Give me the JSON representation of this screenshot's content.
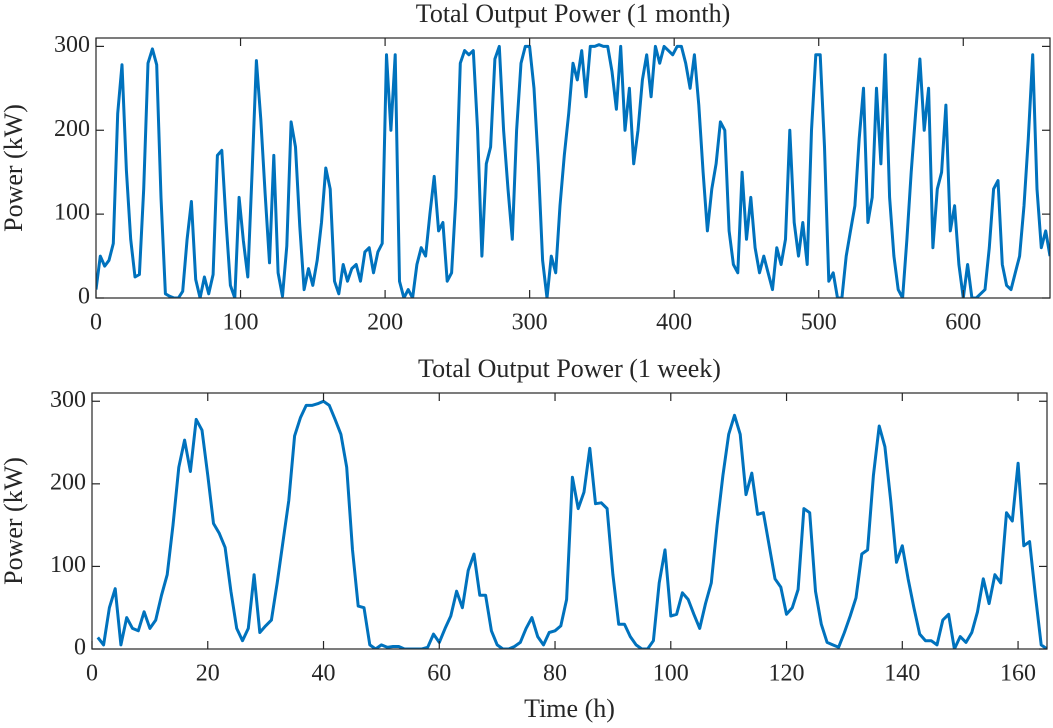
{
  "chart_data": [
    {
      "type": "line",
      "title": "Total Output Power (1 month)",
      "ylabel": "Power (kW)",
      "xlim": [
        0,
        660
      ],
      "ylim": [
        0,
        310
      ],
      "xticks": [
        0,
        100,
        200,
        300,
        400,
        500,
        600
      ],
      "yticks": [
        0,
        100,
        200,
        300
      ],
      "series": [
        {
          "color": "#0072bd",
          "x": [
            0,
            3,
            6,
            9,
            12,
            15,
            18,
            21,
            24,
            27,
            30,
            33,
            36,
            39,
            42,
            45,
            48,
            51,
            54,
            57,
            60,
            63,
            66,
            69,
            72,
            75,
            78,
            81,
            84,
            87,
            90,
            93,
            96,
            99,
            102,
            105,
            108,
            111,
            114,
            117,
            120,
            123,
            126,
            129,
            132,
            135,
            138,
            141,
            144,
            147,
            150,
            153,
            156,
            159,
            162,
            165,
            168,
            171,
            174,
            177,
            180,
            183,
            186,
            189,
            192,
            195,
            198,
            201,
            204,
            207,
            210,
            213,
            216,
            219,
            222,
            225,
            228,
            231,
            234,
            237,
            240,
            243,
            246,
            249,
            252,
            255,
            258,
            261,
            264,
            267,
            270,
            273,
            276,
            279,
            282,
            285,
            288,
            291,
            294,
            297,
            300,
            303,
            306,
            309,
            312,
            315,
            318,
            321,
            324,
            327,
            330,
            333,
            336,
            339,
            342,
            345,
            348,
            351,
            354,
            357,
            360,
            363,
            366,
            369,
            372,
            375,
            378,
            381,
            384,
            387,
            390,
            393,
            396,
            399,
            402,
            405,
            408,
            411,
            414,
            417,
            420,
            423,
            426,
            429,
            432,
            435,
            438,
            441,
            444,
            447,
            450,
            453,
            456,
            459,
            462,
            465,
            468,
            471,
            474,
            477,
            480,
            483,
            486,
            489,
            492,
            495,
            498,
            501,
            504,
            507,
            510,
            513,
            516,
            519,
            522,
            525,
            528,
            531,
            534,
            537,
            540,
            543,
            546,
            549,
            552,
            555,
            558,
            561,
            564,
            567,
            570,
            573,
            576,
            579,
            582,
            585,
            588,
            591,
            594,
            597,
            600,
            603,
            606,
            609,
            612,
            615,
            618,
            621,
            624,
            627,
            630,
            633,
            636,
            639,
            642,
            645,
            648,
            651,
            654,
            657,
            660
          ],
          "values": [
            10,
            50,
            38,
            45,
            65,
            220,
            278,
            152,
            70,
            25,
            28,
            130,
            280,
            297,
            278,
            120,
            5,
            2,
            0,
            0,
            8,
            70,
            115,
            22,
            0,
            25,
            5,
            28,
            170,
            176,
            90,
            15,
            0,
            120,
            68,
            25,
            150,
            283,
            213,
            125,
            42,
            170,
            30,
            2,
            62,
            210,
            180,
            85,
            10,
            35,
            15,
            45,
            90,
            155,
            130,
            20,
            5,
            40,
            20,
            35,
            40,
            20,
            55,
            60,
            30,
            55,
            65,
            290,
            200,
            290,
            20,
            0,
            10,
            0,
            40,
            60,
            50,
            100,
            145,
            80,
            90,
            20,
            30,
            120,
            280,
            295,
            290,
            295,
            200,
            50,
            160,
            180,
            285,
            300,
            200,
            130,
            70,
            200,
            280,
            300,
            300,
            250,
            160,
            45,
            0,
            50,
            30,
            110,
            170,
            220,
            280,
            260,
            295,
            240,
            300,
            300,
            302,
            300,
            300,
            270,
            225,
            300,
            200,
            250,
            160,
            200,
            260,
            290,
            240,
            300,
            280,
            300,
            295,
            290,
            300,
            300,
            280,
            250,
            290,
            230,
            150,
            80,
            130,
            160,
            210,
            200,
            80,
            40,
            30,
            150,
            70,
            120,
            60,
            30,
            50,
            30,
            10,
            60,
            40,
            70,
            200,
            90,
            50,
            90,
            40,
            200,
            290,
            290,
            180,
            20,
            30,
            0,
            0,
            50,
            80,
            110,
            190,
            250,
            90,
            120,
            250,
            160,
            290,
            120,
            50,
            10,
            0,
            70,
            150,
            220,
            285,
            200,
            250,
            60,
            130,
            150,
            230,
            80,
            110,
            40,
            0,
            40,
            0,
            0,
            5,
            10,
            60,
            130,
            140,
            40,
            15,
            10,
            30,
            50,
            110,
            190,
            290,
            130,
            60,
            80,
            50
          ]
        }
      ]
    },
    {
      "type": "line",
      "title": "Total Output Power (1 week)",
      "ylabel": "Power (kW)",
      "xlabel": "Time (h)",
      "xlim": [
        0,
        165
      ],
      "ylim": [
        0,
        310
      ],
      "xticks": [
        0,
        20,
        40,
        60,
        80,
        100,
        120,
        140,
        160
      ],
      "yticks": [
        0,
        100,
        200,
        300
      ],
      "series": [
        {
          "color": "#0072bd",
          "x": [
            1,
            2,
            3,
            4,
            5,
            6,
            7,
            8,
            9,
            10,
            11,
            12,
            13,
            14,
            15,
            16,
            17,
            18,
            19,
            20,
            21,
            22,
            23,
            24,
            25,
            26,
            27,
            28,
            29,
            30,
            31,
            32,
            33,
            34,
            35,
            36,
            37,
            38,
            39,
            40,
            41,
            42,
            43,
            44,
            45,
            46,
            47,
            48,
            49,
            50,
            51,
            52,
            53,
            54,
            55,
            56,
            57,
            58,
            59,
            60,
            61,
            62,
            63,
            64,
            65,
            66,
            67,
            68,
            69,
            70,
            71,
            72,
            73,
            74,
            75,
            76,
            77,
            78,
            79,
            80,
            81,
            82,
            83,
            84,
            85,
            86,
            87,
            88,
            89,
            90,
            91,
            92,
            93,
            94,
            95,
            96,
            97,
            98,
            99,
            100,
            101,
            102,
            103,
            104,
            105,
            106,
            107,
            108,
            109,
            110,
            111,
            112,
            113,
            114,
            115,
            116,
            117,
            118,
            119,
            120,
            121,
            122,
            123,
            124,
            125,
            126,
            127,
            128,
            129,
            130,
            131,
            132,
            133,
            134,
            135,
            136,
            137,
            138,
            139,
            140,
            141,
            142,
            143,
            144,
            145,
            146,
            147,
            148,
            149,
            150,
            151,
            152,
            153,
            154,
            155,
            156,
            157,
            158,
            159,
            160,
            161,
            162,
            163,
            164,
            165
          ],
          "values": [
            14,
            5,
            50,
            73,
            5,
            38,
            25,
            22,
            45,
            25,
            35,
            65,
            90,
            150,
            220,
            253,
            215,
            278,
            265,
            210,
            152,
            140,
            123,
            70,
            25,
            10,
            25,
            90,
            20,
            28,
            35,
            80,
            130,
            180,
            258,
            280,
            295,
            295,
            297,
            300,
            295,
            278,
            260,
            220,
            120,
            52,
            50,
            5,
            0,
            5,
            2,
            3,
            3,
            0,
            0,
            0,
            0,
            2,
            18,
            8,
            25,
            40,
            70,
            50,
            95,
            115,
            65,
            65,
            22,
            5,
            0,
            0,
            3,
            8,
            25,
            38,
            15,
            5,
            20,
            22,
            28,
            60,
            208,
            170,
            190,
            243,
            176,
            177,
            170,
            90,
            30,
            30,
            15,
            5,
            0,
            0,
            10,
            80,
            120,
            40,
            42,
            68,
            60,
            42,
            25,
            55,
            80,
            150,
            210,
            260,
            283,
            260,
            187,
            213,
            163,
            165,
            125,
            85,
            75,
            42,
            50,
            72,
            170,
            165,
            70,
            30,
            8,
            5,
            2,
            20,
            40,
            62,
            115,
            120,
            210,
            270,
            245,
            180,
            105,
            125,
            85,
            50,
            18,
            10,
            10,
            5,
            35,
            42,
            0,
            15,
            8,
            20,
            45,
            85,
            55,
            90,
            80,
            165,
            155,
            225,
            125,
            130,
            65,
            5,
            0
          ]
        }
      ]
    }
  ]
}
